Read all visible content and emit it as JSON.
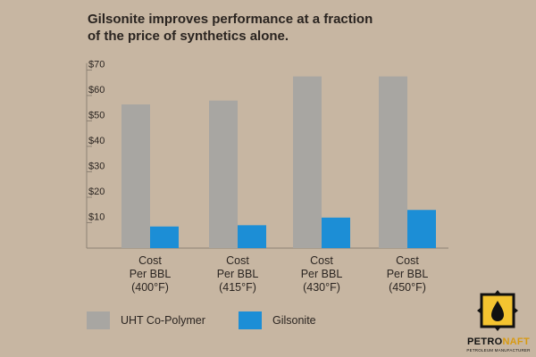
{
  "title_lines": [
    "Gilsonite improves performance at a fraction",
    "of the price of synthetics alone."
  ],
  "colors": {
    "uht": "#a8a6a2",
    "gilsonite": "#1c8ed6",
    "background": "#c7b6a2",
    "axis": "#8e8274"
  },
  "chart_data": {
    "type": "bar",
    "title": "Gilsonite improves performance at a fraction of the price of synthetics alone.",
    "categories": [
      [
        "Cost",
        "Per BBL",
        "(400°F)"
      ],
      [
        "Cost",
        "Per BBL",
        "(415°F)"
      ],
      [
        "Cost",
        "Per BBL",
        "(430°F)"
      ],
      [
        "Cost",
        "Per BBL",
        "(450°F)"
      ]
    ],
    "series": [
      {
        "name": "UHT Co-Polymer",
        "values": [
          56.5,
          58,
          67.5,
          67.5
        ]
      },
      {
        "name": "Gilsonite",
        "values": [
          8.5,
          9,
          12,
          15
        ]
      }
    ],
    "ylim": [
      0,
      72
    ],
    "yticks": [
      10,
      20,
      30,
      40,
      50,
      60,
      70
    ],
    "ytick_labels": [
      "$10",
      "$20",
      "$30",
      "$40",
      "$50",
      "$60",
      "$70"
    ],
    "xlabel": "",
    "ylabel": "",
    "grid": false,
    "legend_position": "bottom-left"
  },
  "legend": {
    "uht_label": "UHT Co-Polymer",
    "gilsonite_label": "Gilsonite"
  },
  "logo": {
    "name_main": "PETRO",
    "name_accent": "NAFT",
    "tagline": "PETROLEUM MANUFACTURER"
  }
}
